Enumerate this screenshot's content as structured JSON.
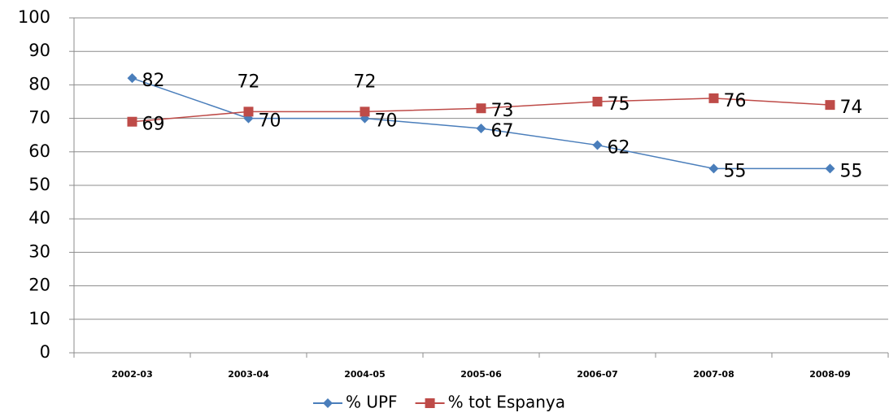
{
  "chart_data": {
    "type": "line",
    "categories": [
      "2002-03",
      "2003-04",
      "2004-05",
      "2005-06",
      "2006-07",
      "2007-08",
      "2008-09"
    ],
    "series": [
      {
        "name": "% UPF",
        "color": "#4a7ebb",
        "marker": "diamond",
        "values": [
          82,
          70,
          70,
          67,
          62,
          55,
          55
        ]
      },
      {
        "name": "% tot Espanya",
        "color": "#be4b48",
        "marker": "square",
        "values": [
          69,
          72,
          72,
          73,
          75,
          76,
          74
        ]
      }
    ],
    "ylim": [
      0,
      100
    ],
    "yticks": [
      0,
      10,
      20,
      30,
      40,
      50,
      60,
      70,
      80,
      90,
      100
    ],
    "grid": true,
    "legend": "bottom"
  }
}
